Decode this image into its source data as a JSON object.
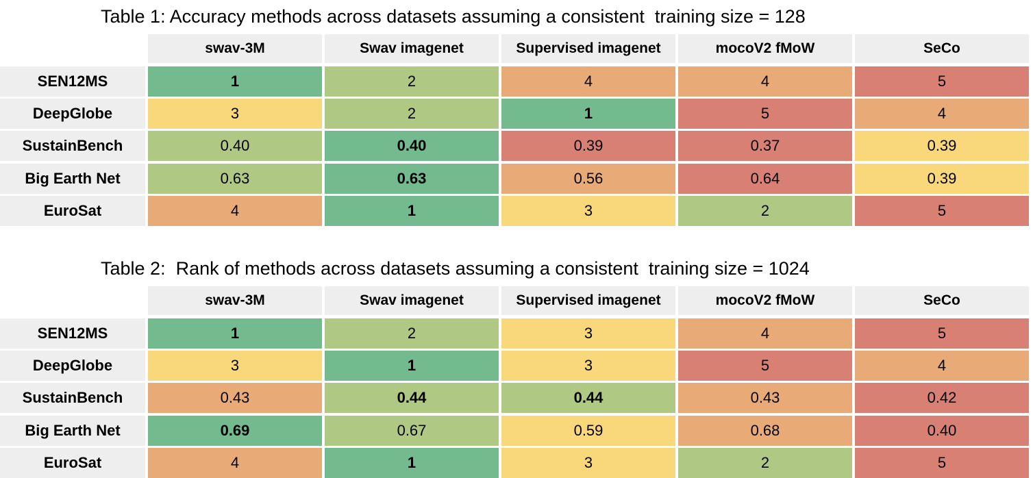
{
  "palette": {
    "dark_green": "#73bb8f",
    "light_green": "#afc985",
    "yellow": "#f8d87b",
    "orange": "#e8ab78",
    "red": "#d98074",
    "header_gray": "#eeeeee"
  },
  "tables": [
    {
      "title": "Table 1: Accuracy methods across datasets assuming a consistent  training size = 128",
      "columns": [
        "swav-3M",
        "Swav imagenet",
        "Supervised imagenet",
        "mocoV2 fMoW",
        "SeCo"
      ],
      "rows": [
        {
          "label": "SEN12MS",
          "cells": [
            {
              "text": "1",
              "color": "dark_green",
              "bold": true
            },
            {
              "text": "2",
              "color": "light_green",
              "bold": false
            },
            {
              "text": "4",
              "color": "orange",
              "bold": false
            },
            {
              "text": "4",
              "color": "orange",
              "bold": false
            },
            {
              "text": "5",
              "color": "red",
              "bold": false
            }
          ]
        },
        {
          "label": "DeepGlobe",
          "cells": [
            {
              "text": "3",
              "color": "yellow",
              "bold": false
            },
            {
              "text": "2",
              "color": "light_green",
              "bold": false
            },
            {
              "text": "1",
              "color": "dark_green",
              "bold": true
            },
            {
              "text": "5",
              "color": "red",
              "bold": false
            },
            {
              "text": "4",
              "color": "orange",
              "bold": false
            }
          ]
        },
        {
          "label": "SustainBench",
          "cells": [
            {
              "text": "0.40",
              "color": "light_green",
              "bold": false
            },
            {
              "text": "0.40",
              "color": "dark_green",
              "bold": true
            },
            {
              "text": "0.39",
              "color": "red",
              "bold": false
            },
            {
              "text": "0.37",
              "color": "red",
              "bold": false
            },
            {
              "text": "0.39",
              "color": "yellow",
              "bold": false
            }
          ]
        },
        {
          "label": "Big Earth Net",
          "cells": [
            {
              "text": "0.63",
              "color": "light_green",
              "bold": false
            },
            {
              "text": "0.63",
              "color": "dark_green",
              "bold": true
            },
            {
              "text": "0.56",
              "color": "orange",
              "bold": false
            },
            {
              "text": "0.64",
              "color": "red",
              "bold": false
            },
            {
              "text": "0.39",
              "color": "yellow",
              "bold": false
            }
          ]
        },
        {
          "label": "EuroSat",
          "cells": [
            {
              "text": "4",
              "color": "orange",
              "bold": false
            },
            {
              "text": "1",
              "color": "dark_green",
              "bold": true
            },
            {
              "text": "3",
              "color": "yellow",
              "bold": false
            },
            {
              "text": "2",
              "color": "light_green",
              "bold": false
            },
            {
              "text": "5",
              "color": "red",
              "bold": false
            }
          ]
        }
      ]
    },
    {
      "title": "Table 2:  Rank of methods across datasets assuming a consistent  training size = 1024",
      "columns": [
        "swav-3M",
        "Swav imagenet",
        "Supervised imagenet",
        "mocoV2 fMoW",
        "SeCo"
      ],
      "rows": [
        {
          "label": "SEN12MS",
          "cells": [
            {
              "text": "1",
              "color": "dark_green",
              "bold": true
            },
            {
              "text": "2",
              "color": "light_green",
              "bold": false
            },
            {
              "text": "3",
              "color": "yellow",
              "bold": false
            },
            {
              "text": "4",
              "color": "orange",
              "bold": false
            },
            {
              "text": "5",
              "color": "red",
              "bold": false
            }
          ]
        },
        {
          "label": "DeepGlobe",
          "cells": [
            {
              "text": "3",
              "color": "yellow",
              "bold": false
            },
            {
              "text": "1",
              "color": "dark_green",
              "bold": true
            },
            {
              "text": "3",
              "color": "yellow",
              "bold": false
            },
            {
              "text": "5",
              "color": "red",
              "bold": false
            },
            {
              "text": "4",
              "color": "orange",
              "bold": false
            }
          ]
        },
        {
          "label": "SustainBench",
          "cells": [
            {
              "text": "0.43",
              "color": "orange",
              "bold": false
            },
            {
              "text": "0.44",
              "color": "light_green",
              "bold": true
            },
            {
              "text": "0.44",
              "color": "light_green",
              "bold": true
            },
            {
              "text": "0.43",
              "color": "orange",
              "bold": false
            },
            {
              "text": "0.42",
              "color": "red",
              "bold": false
            }
          ]
        },
        {
          "label": "Big Earth Net",
          "cells": [
            {
              "text": "0.69",
              "color": "dark_green",
              "bold": true
            },
            {
              "text": "0.67",
              "color": "light_green",
              "bold": false
            },
            {
              "text": "0.59",
              "color": "yellow",
              "bold": false
            },
            {
              "text": "0.68",
              "color": "orange",
              "bold": false
            },
            {
              "text": "0.40",
              "color": "red",
              "bold": false
            }
          ]
        },
        {
          "label": "EuroSat",
          "cells": [
            {
              "text": "4",
              "color": "orange",
              "bold": false
            },
            {
              "text": "1",
              "color": "dark_green",
              "bold": true
            },
            {
              "text": "3",
              "color": "yellow",
              "bold": false
            },
            {
              "text": "2",
              "color": "light_green",
              "bold": false
            },
            {
              "text": "5",
              "color": "red",
              "bold": false
            }
          ]
        }
      ]
    }
  ]
}
